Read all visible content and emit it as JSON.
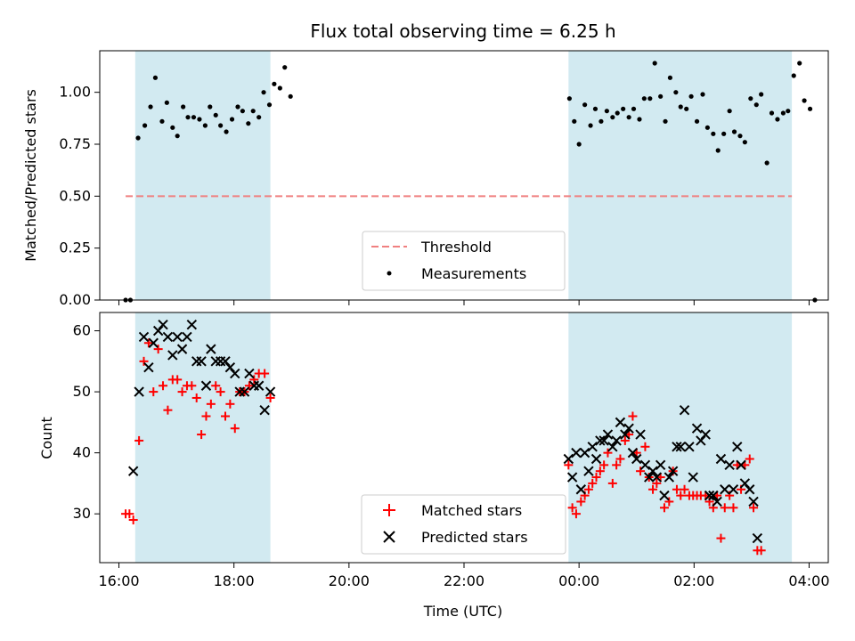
{
  "chart_data": [
    {
      "type": "scatter",
      "title": "Flux total observing time = 6.25 h",
      "xlabel": "",
      "ylabel": "Matched/Predicted stars",
      "ylim": [
        0,
        1.2
      ],
      "yticks": [
        "0.00",
        "0.25",
        "0.50",
        "0.75",
        "1.00"
      ],
      "shaded_intervals": [
        [
          "16:17",
          "18:38"
        ],
        [
          "23:49",
          "03:42"
        ]
      ],
      "shade_color": "#add8e6",
      "threshold": {
        "name": "Threshold",
        "value": 0.5,
        "color": "#f08080",
        "x_range": [
          "16:07",
          "03:42"
        ]
      },
      "measurements_name": "Measurements",
      "legend": "bottom-center",
      "series": [
        {
          "name": "Measurements",
          "color": "#000000",
          "points": [
            [
              "16:07",
              0.0
            ],
            [
              "16:12",
              0.0
            ],
            [
              "16:20",
              0.78
            ],
            [
              "16:27",
              0.84
            ],
            [
              "16:33",
              0.93
            ],
            [
              "16:38",
              1.07
            ],
            [
              "16:45",
              0.86
            ],
            [
              "16:50",
              0.95
            ],
            [
              "16:56",
              0.83
            ],
            [
              "17:01",
              0.79
            ],
            [
              "17:07",
              0.93
            ],
            [
              "17:12",
              0.88
            ],
            [
              "17:18",
              0.88
            ],
            [
              "17:24",
              0.87
            ],
            [
              "17:30",
              0.84
            ],
            [
              "17:35",
              0.93
            ],
            [
              "17:41",
              0.89
            ],
            [
              "17:46",
              0.84
            ],
            [
              "17:52",
              0.81
            ],
            [
              "17:58",
              0.87
            ],
            [
              "18:04",
              0.93
            ],
            [
              "18:09",
              0.91
            ],
            [
              "18:15",
              0.85
            ],
            [
              "18:20",
              0.91
            ],
            [
              "18:26",
              0.88
            ],
            [
              "18:31",
              1.0
            ],
            [
              "18:37",
              0.94
            ],
            [
              "18:42",
              1.04
            ],
            [
              "18:48",
              1.02
            ],
            [
              "18:53",
              1.12
            ],
            [
              "18:59",
              0.98
            ],
            [
              "23:50",
              0.97
            ],
            [
              "23:55",
              0.86
            ],
            [
              "00:00",
              0.75
            ],
            [
              "00:06",
              0.94
            ],
            [
              "00:12",
              0.84
            ],
            [
              "00:17",
              0.92
            ],
            [
              "00:23",
              0.86
            ],
            [
              "00:29",
              0.91
            ],
            [
              "00:35",
              0.88
            ],
            [
              "00:40",
              0.9
            ],
            [
              "00:46",
              0.92
            ],
            [
              "00:52",
              0.88
            ],
            [
              "00:57",
              0.92
            ],
            [
              "01:03",
              0.87
            ],
            [
              "01:08",
              0.97
            ],
            [
              "01:14",
              0.97
            ],
            [
              "01:19",
              1.14
            ],
            [
              "01:25",
              0.98
            ],
            [
              "01:30",
              0.86
            ],
            [
              "01:35",
              1.07
            ],
            [
              "01:41",
              1.0
            ],
            [
              "01:46",
              0.93
            ],
            [
              "01:52",
              0.92
            ],
            [
              "01:57",
              0.98
            ],
            [
              "02:03",
              0.86
            ],
            [
              "02:09",
              0.99
            ],
            [
              "02:14",
              0.83
            ],
            [
              "02:20",
              0.8
            ],
            [
              "02:25",
              0.72
            ],
            [
              "02:31",
              0.8
            ],
            [
              "02:37",
              0.91
            ],
            [
              "02:42",
              0.81
            ],
            [
              "02:48",
              0.79
            ],
            [
              "02:53",
              0.76
            ],
            [
              "02:59",
              0.97
            ],
            [
              "03:05",
              0.94
            ],
            [
              "03:10",
              0.99
            ],
            [
              "03:16",
              0.66
            ],
            [
              "03:21",
              0.9
            ],
            [
              "03:27",
              0.87
            ],
            [
              "03:33",
              0.9
            ],
            [
              "03:38",
              0.91
            ],
            [
              "03:44",
              1.08
            ],
            [
              "03:50",
              1.14
            ],
            [
              "03:55",
              0.96
            ],
            [
              "04:01",
              0.92
            ],
            [
              "04:06",
              0.0
            ]
          ]
        }
      ]
    },
    {
      "type": "scatter",
      "title": "",
      "xlabel": "Time (UTC)",
      "ylabel": "Count",
      "ylim": [
        22,
        63
      ],
      "yticks": [
        "30",
        "40",
        "50",
        "60"
      ],
      "xticks": [
        "16:00",
        "18:00",
        "20:00",
        "22:00",
        "00:00",
        "02:00",
        "04:00"
      ],
      "shaded_intervals": [
        [
          "16:17",
          "18:38"
        ],
        [
          "23:49",
          "03:42"
        ]
      ],
      "shade_color": "#add8e6",
      "legend": "bottom-center",
      "series": [
        {
          "name": "Matched stars",
          "marker": "+",
          "color": "#ff0000",
          "points": [
            [
              "16:07",
              30
            ],
            [
              "16:11",
              30
            ],
            [
              "16:15",
              29
            ],
            [
              "16:21",
              42
            ],
            [
              "16:26",
              55
            ],
            [
              "16:31",
              58
            ],
            [
              "16:36",
              50
            ],
            [
              "16:41",
              57
            ],
            [
              "16:46",
              51
            ],
            [
              "16:51",
              47
            ],
            [
              "16:56",
              52
            ],
            [
              "17:01",
              52
            ],
            [
              "17:06",
              50
            ],
            [
              "17:11",
              51
            ],
            [
              "17:16",
              51
            ],
            [
              "17:21",
              49
            ],
            [
              "17:26",
              43
            ],
            [
              "17:31",
              46
            ],
            [
              "17:36",
              48
            ],
            [
              "17:41",
              51
            ],
            [
              "17:46",
              50
            ],
            [
              "17:51",
              46
            ],
            [
              "17:56",
              48
            ],
            [
              "18:01",
              44
            ],
            [
              "18:06",
              50
            ],
            [
              "18:11",
              50
            ],
            [
              "18:16",
              51
            ],
            [
              "18:21",
              52
            ],
            [
              "18:26",
              53
            ],
            [
              "18:32",
              53
            ],
            [
              "18:38",
              49
            ],
            [
              "23:49",
              38
            ],
            [
              "23:53",
              31
            ],
            [
              "23:57",
              30
            ],
            [
              "00:02",
              32
            ],
            [
              "00:06",
              33
            ],
            [
              "00:10",
              34
            ],
            [
              "00:14",
              35
            ],
            [
              "00:18",
              36
            ],
            [
              "00:22",
              37
            ],
            [
              "00:26",
              38
            ],
            [
              "00:30",
              40
            ],
            [
              "00:35",
              35
            ],
            [
              "00:39",
              38
            ],
            [
              "00:43",
              39
            ],
            [
              "00:48",
              42
            ],
            [
              "00:52",
              43
            ],
            [
              "00:56",
              46
            ],
            [
              "01:00",
              40
            ],
            [
              "01:04",
              37
            ],
            [
              "01:09",
              41
            ],
            [
              "01:13",
              36
            ],
            [
              "01:17",
              34
            ],
            [
              "01:21",
              35
            ],
            [
              "01:25",
              36
            ],
            [
              "01:29",
              31
            ],
            [
              "01:34",
              32
            ],
            [
              "01:38",
              37
            ],
            [
              "01:42",
              34
            ],
            [
              "01:46",
              33
            ],
            [
              "01:50",
              34
            ],
            [
              "01:55",
              33
            ],
            [
              "01:59",
              33
            ],
            [
              "02:03",
              33
            ],
            [
              "02:07",
              33
            ],
            [
              "02:12",
              33
            ],
            [
              "02:16",
              32
            ],
            [
              "02:20",
              31
            ],
            [
              "02:24",
              33
            ],
            [
              "02:28",
              26
            ],
            [
              "02:32",
              31
            ],
            [
              "02:37",
              33
            ],
            [
              "02:41",
              31
            ],
            [
              "02:45",
              38
            ],
            [
              "02:49",
              34
            ],
            [
              "02:53",
              38
            ],
            [
              "02:58",
              39
            ],
            [
              "03:02",
              31
            ],
            [
              "03:06",
              24
            ],
            [
              "03:10",
              24
            ]
          ]
        },
        {
          "name": "Predicted stars",
          "marker": "x",
          "color": "#000000",
          "points": [
            [
              "16:15",
              37
            ],
            [
              "16:21",
              50
            ],
            [
              "16:26",
              59
            ],
            [
              "16:31",
              54
            ],
            [
              "16:36",
              58
            ],
            [
              "16:41",
              60
            ],
            [
              "16:46",
              61
            ],
            [
              "16:51",
              59
            ],
            [
              "16:56",
              56
            ],
            [
              "17:01",
              59
            ],
            [
              "17:06",
              57
            ],
            [
              "17:11",
              59
            ],
            [
              "17:16",
              61
            ],
            [
              "17:21",
              55
            ],
            [
              "17:26",
              55
            ],
            [
              "17:31",
              51
            ],
            [
              "17:36",
              57
            ],
            [
              "17:41",
              55
            ],
            [
              "17:46",
              55
            ],
            [
              "17:51",
              55
            ],
            [
              "17:56",
              54
            ],
            [
              "18:01",
              53
            ],
            [
              "18:06",
              50
            ],
            [
              "18:11",
              50
            ],
            [
              "18:16",
              53
            ],
            [
              "18:21",
              51
            ],
            [
              "18:26",
              51
            ],
            [
              "18:32",
              47
            ],
            [
              "18:38",
              50
            ],
            [
              "23:49",
              39
            ],
            [
              "23:53",
              36
            ],
            [
              "23:57",
              40
            ],
            [
              "00:02",
              34
            ],
            [
              "00:06",
              40
            ],
            [
              "00:10",
              37
            ],
            [
              "00:14",
              41
            ],
            [
              "00:18",
              39
            ],
            [
              "00:22",
              42
            ],
            [
              "00:26",
              42
            ],
            [
              "00:30",
              43
            ],
            [
              "00:35",
              41
            ],
            [
              "00:39",
              42
            ],
            [
              "00:43",
              45
            ],
            [
              "00:48",
              43
            ],
            [
              "00:52",
              44
            ],
            [
              "00:56",
              40
            ],
            [
              "01:00",
              39
            ],
            [
              "01:04",
              43
            ],
            [
              "01:09",
              38
            ],
            [
              "01:13",
              36
            ],
            [
              "01:17",
              37
            ],
            [
              "01:21",
              36
            ],
            [
              "01:25",
              38
            ],
            [
              "01:29",
              33
            ],
            [
              "01:34",
              36
            ],
            [
              "01:38",
              37
            ],
            [
              "01:42",
              41
            ],
            [
              "01:46",
              41
            ],
            [
              "01:50",
              47
            ],
            [
              "01:55",
              41
            ],
            [
              "01:59",
              36
            ],
            [
              "02:03",
              44
            ],
            [
              "02:07",
              42
            ],
            [
              "02:12",
              43
            ],
            [
              "02:16",
              33
            ],
            [
              "02:20",
              33
            ],
            [
              "02:24",
              32
            ],
            [
              "02:28",
              39
            ],
            [
              "02:32",
              34
            ],
            [
              "02:37",
              38
            ],
            [
              "02:41",
              34
            ],
            [
              "02:45",
              41
            ],
            [
              "02:49",
              38
            ],
            [
              "02:53",
              35
            ],
            [
              "02:58",
              34
            ],
            [
              "03:02",
              32
            ],
            [
              "03:06",
              26
            ]
          ]
        }
      ]
    }
  ]
}
